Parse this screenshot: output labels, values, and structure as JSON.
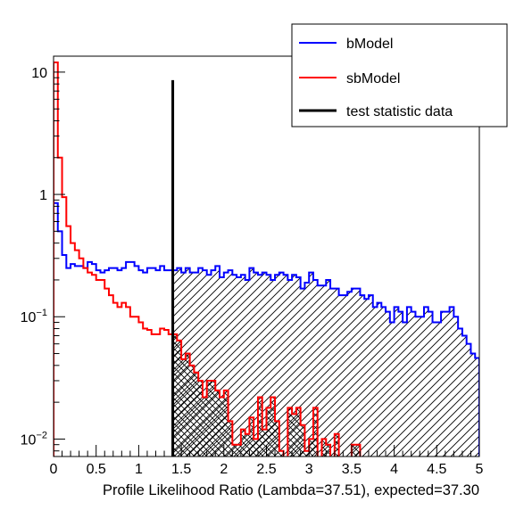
{
  "chart_data": {
    "type": "histogram",
    "log_scale_y": true,
    "xlim": [
      0,
      5
    ],
    "ylim": [
      0.0072,
      13.5
    ],
    "xlabel": "Profile Likelihood Ratio (Lambda=37.51), expected=37.30",
    "ylabel": "",
    "x_tick_labels": [
      "0",
      "0.5",
      "1",
      "1.5",
      "2",
      "2.5",
      "3",
      "3.5",
      "4",
      "4.5",
      "5"
    ],
    "y_tick_labels": [
      {
        "value": 0.01,
        "base": "10",
        "exp": "−2"
      },
      {
        "value": 0.1,
        "base": "10",
        "exp": "−1"
      },
      {
        "value": 1,
        "base": "1",
        "exp": ""
      },
      {
        "value": 10,
        "base": "10",
        "exp": ""
      }
    ],
    "bin_width": 0.05,
    "series": [
      {
        "name": "bModel",
        "color": "#0000ff",
        "hatch": "diagonal",
        "values": [
          0.85,
          0.5,
          0.32,
          0.25,
          0.27,
          0.26,
          0.26,
          0.25,
          0.28,
          0.27,
          0.24,
          0.23,
          0.24,
          0.25,
          0.25,
          0.24,
          0.25,
          0.28,
          0.28,
          0.26,
          0.24,
          0.23,
          0.25,
          0.25,
          0.24,
          0.26,
          0.24,
          0.24,
          0.24,
          0.25,
          0.23,
          0.25,
          0.23,
          0.23,
          0.25,
          0.24,
          0.22,
          0.24,
          0.26,
          0.21,
          0.23,
          0.24,
          0.22,
          0.21,
          0.22,
          0.2,
          0.25,
          0.23,
          0.22,
          0.23,
          0.22,
          0.2,
          0.22,
          0.23,
          0.22,
          0.2,
          0.22,
          0.21,
          0.17,
          0.19,
          0.23,
          0.2,
          0.18,
          0.18,
          0.2,
          0.17,
          0.17,
          0.15,
          0.15,
          0.16,
          0.17,
          0.17,
          0.15,
          0.14,
          0.15,
          0.12,
          0.13,
          0.12,
          0.11,
          0.09,
          0.12,
          0.11,
          0.09,
          0.12,
          0.11,
          0.1,
          0.1,
          0.12,
          0.11,
          0.09,
          0.09,
          0.11,
          0.11,
          0.12,
          0.1,
          0.08,
          0.07,
          0.06,
          0.05,
          0.046
        ]
      },
      {
        "name": "sbModel",
        "color": "#ff0000",
        "hatch": "crosshatch",
        "values": [
          12.0,
          2.0,
          0.95,
          0.55,
          0.4,
          0.35,
          0.3,
          0.25,
          0.23,
          0.22,
          0.2,
          0.2,
          0.17,
          0.15,
          0.13,
          0.12,
          0.13,
          0.12,
          0.1,
          0.1,
          0.09,
          0.08,
          0.078,
          0.072,
          0.072,
          0.08,
          0.078,
          0.072,
          0.072,
          0.064,
          0.045,
          0.05,
          0.04,
          0.035,
          0.03,
          0.022,
          0.03,
          0.03,
          0.025,
          0.022,
          0.025,
          0.014,
          0.009,
          0.009,
          0.012,
          0.011,
          0.015,
          0.01,
          0.022,
          0.012,
          0.018,
          0.022,
          0.014,
          0.008,
          0.007,
          0.018,
          0.016,
          0.018,
          0.013,
          0.008,
          0.01,
          0.018,
          0.007,
          0.01,
          0.009,
          0.007,
          0.011,
          0.007,
          0.007,
          0.007,
          0.009,
          0.009,
          0.006,
          0.005,
          0.007,
          0.005,
          0.006,
          0.004,
          0.003,
          0.004,
          0.005,
          0.003,
          0.002,
          0.003,
          0.004,
          0.003,
          0.003,
          0.002,
          0.004,
          0.003,
          0.002,
          0.003,
          0.002,
          0.003,
          0.002,
          0.002,
          0.003,
          0.001,
          0.002,
          0.001
        ]
      }
    ],
    "test_statistic": {
      "name": "test statistic data",
      "x": 1.4,
      "y_top": 8.6,
      "color": "#000000"
    },
    "legend": {
      "position": "top-right",
      "entries": [
        {
          "label": "bModel",
          "color": "#0000ff"
        },
        {
          "label": "sbModel",
          "color": "#ff0000"
        },
        {
          "label": "test statistic data",
          "color": "#000000"
        }
      ]
    }
  }
}
